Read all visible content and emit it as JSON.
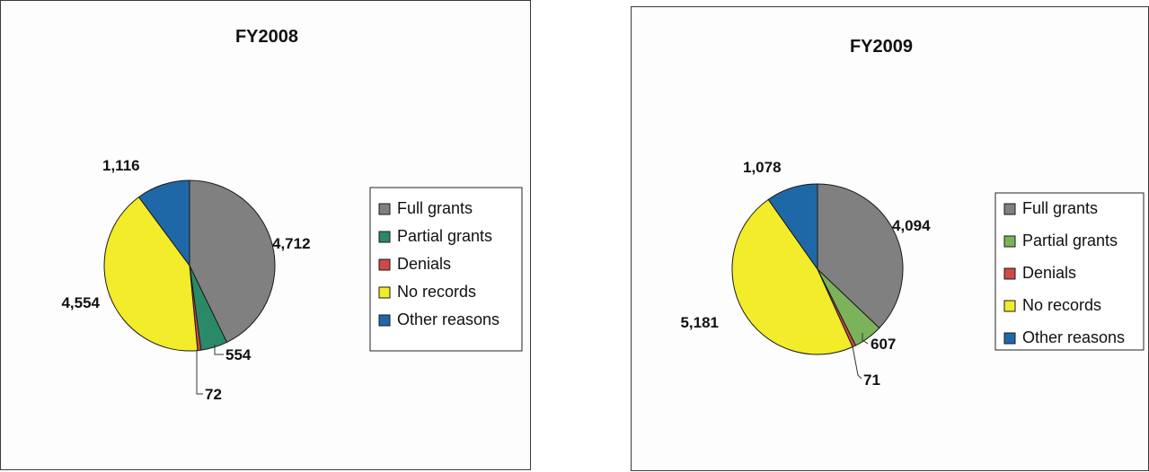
{
  "chart_data": [
    {
      "type": "pie",
      "title": "FY2008",
      "categories": [
        "Full grants",
        "Partial grants",
        "Denials",
        "No records",
        "Other reasons"
      ],
      "values": [
        4712,
        554,
        72,
        4554,
        1116
      ],
      "data_labels": [
        "4,712",
        "554",
        "72",
        "4,554",
        "1,116"
      ],
      "colors": [
        "#808080",
        "#2a8a68",
        "#d04848",
        "#f2ec2a",
        "#1f68a8"
      ],
      "start": "top (12 o'clock), clockwise",
      "legend": "right"
    },
    {
      "type": "pie",
      "title": "FY2009",
      "categories": [
        "Full grants",
        "Partial grants",
        "Denials",
        "No records",
        "Other reasons"
      ],
      "values": [
        4094,
        607,
        71,
        5181,
        1078
      ],
      "data_labels": [
        "4,094",
        "607",
        "71",
        "5,181",
        "1,078"
      ],
      "colors": [
        "#808080",
        "#7cb35a",
        "#d04848",
        "#f2ec2a",
        "#1f68a8"
      ],
      "start": "top (12 o'clock), clockwise",
      "legend": "right"
    }
  ]
}
